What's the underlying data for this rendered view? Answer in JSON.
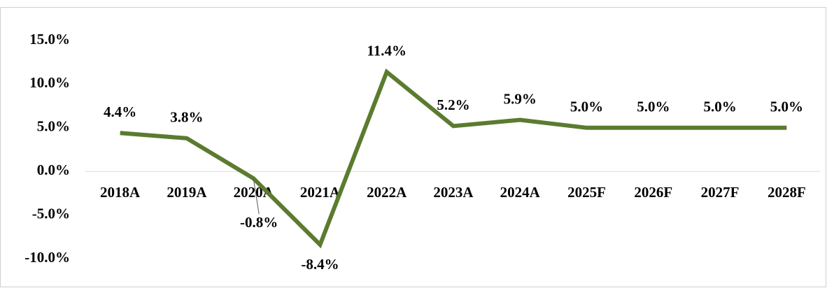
{
  "chart_data": {
    "type": "line",
    "categories": [
      "2018A",
      "2019A",
      "2020A",
      "2021A",
      "2022A",
      "2023A",
      "2024A",
      "2025F",
      "2026F",
      "2027F",
      "2028F"
    ],
    "series": [
      {
        "color": "#5b7b2f",
        "values": [
          4.4,
          3.8,
          -0.8,
          -8.4,
          11.4,
          5.2,
          5.9,
          5.0,
          5.0,
          5.0,
          5.0
        ],
        "value_labels": [
          "4.4%",
          "3.8%",
          "-0.8%",
          "-8.4%",
          "11.4%",
          "5.2%",
          "5.9%",
          "5.0%",
          "5.0%",
          "5.0%",
          "5.0%"
        ]
      }
    ],
    "ylim": [
      -10,
      15
    ],
    "yticks": [
      {
        "value": -10,
        "label": "-10.0%"
      },
      {
        "value": -5,
        "label": "-5.0%"
      },
      {
        "value": 0,
        "label": "0.0%"
      },
      {
        "value": 5,
        "label": "5.0%"
      },
      {
        "value": 10,
        "label": "10.0%"
      },
      {
        "value": 15,
        "label": "15.0%"
      }
    ]
  }
}
